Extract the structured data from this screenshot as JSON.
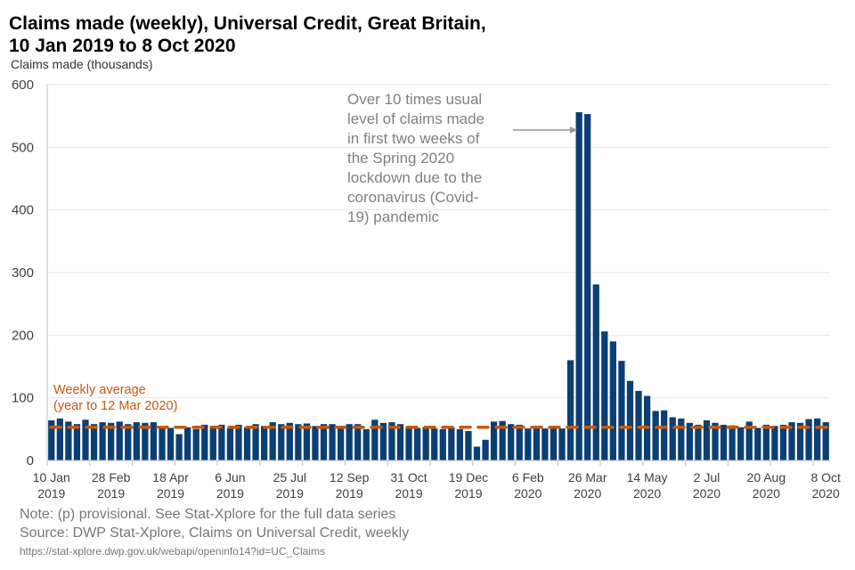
{
  "title_line1": "Claims made (weekly), Universal Credit, Great Britain,",
  "title_line2": "10 Jan 2019 to 8 Oct 2020",
  "annotation": [
    "Over 10 times usual",
    "level of claims made",
    "in first two weeks of",
    "the Spring 2020",
    "lockdown due to the",
    "coronavirus (Covid-",
    "19) pandemic"
  ],
  "average_label": [
    "Weekly average",
    "(year to 12 Mar 2020)"
  ],
  "note": "Note: (p) provisional. See Stat-Xplore for the full data series",
  "source": "Source: DWP Stat-Xplore, Claims on Universal Credit, weekly",
  "url": "https://stat-xplore.dwp.gov.uk/webapi/openinfo14?id=UC_Claims",
  "colors": {
    "bar": "#0b3f73",
    "average": "#c55a11",
    "grid": "#e6e6e6",
    "axis": "#bfbfbf",
    "annotation": "#808080"
  },
  "chart_data": {
    "type": "bar",
    "title": "Claims made (weekly), Universal Credit, Great Britain, 10 Jan 2019 to 8 Oct 2020",
    "xlabel": "",
    "ylabel": "Claims made (thousands)",
    "ylim": [
      0,
      600
    ],
    "yticks": [
      0,
      100,
      200,
      300,
      400,
      500,
      600
    ],
    "grid": true,
    "start_week": "10 Jan 2019",
    "xtick_labels": [
      {
        "index": 0,
        "line1": "10 Jan",
        "line2": "2019"
      },
      {
        "index": 7,
        "line1": "28 Feb",
        "line2": "2019"
      },
      {
        "index": 14,
        "line1": "18 Apr",
        "line2": "2019"
      },
      {
        "index": 21,
        "line1": "6 Jun",
        "line2": "2019"
      },
      {
        "index": 28,
        "line1": "25 Jul",
        "line2": "2019"
      },
      {
        "index": 35,
        "line1": "12 Sep",
        "line2": "2019"
      },
      {
        "index": 42,
        "line1": "31 Oct",
        "line2": "2019"
      },
      {
        "index": 49,
        "line1": "19 Dec",
        "line2": "2019"
      },
      {
        "index": 56,
        "line1": "6 Feb",
        "line2": "2020"
      },
      {
        "index": 63,
        "line1": "26 Mar",
        "line2": "2020"
      },
      {
        "index": 70,
        "line1": "14 May",
        "line2": "2020"
      },
      {
        "index": 77,
        "line1": "2 Jul",
        "line2": "2020"
      },
      {
        "index": 84,
        "line1": "20 Aug",
        "line2": "2020"
      },
      {
        "index": 91,
        "line1": "8 Oct",
        "line2": "2020"
      }
    ],
    "series": [
      {
        "name": "Claims made (weekly)",
        "values": [
          64,
          67,
          62,
          58,
          65,
          58,
          61,
          60,
          62,
          58,
          61,
          60,
          61,
          55,
          52,
          42,
          53,
          50,
          57,
          52,
          57,
          51,
          57,
          53,
          58,
          55,
          61,
          58,
          60,
          58,
          59,
          55,
          58,
          58,
          53,
          58,
          58,
          50,
          65,
          60,
          61,
          58,
          53,
          52,
          53,
          51,
          50,
          53,
          50,
          47,
          22,
          33,
          62,
          63,
          58,
          57,
          51,
          51,
          51,
          55,
          51,
          160,
          556,
          553,
          281,
          206,
          190,
          159,
          127,
          111,
          103,
          79,
          80,
          69,
          67,
          60,
          57,
          64,
          60,
          57,
          56,
          53,
          62,
          52,
          57,
          55,
          57,
          61,
          60,
          66,
          67,
          61
        ]
      },
      {
        "name": "Weekly average (year to 12 Mar 2020)",
        "value": 53
      }
    ]
  }
}
